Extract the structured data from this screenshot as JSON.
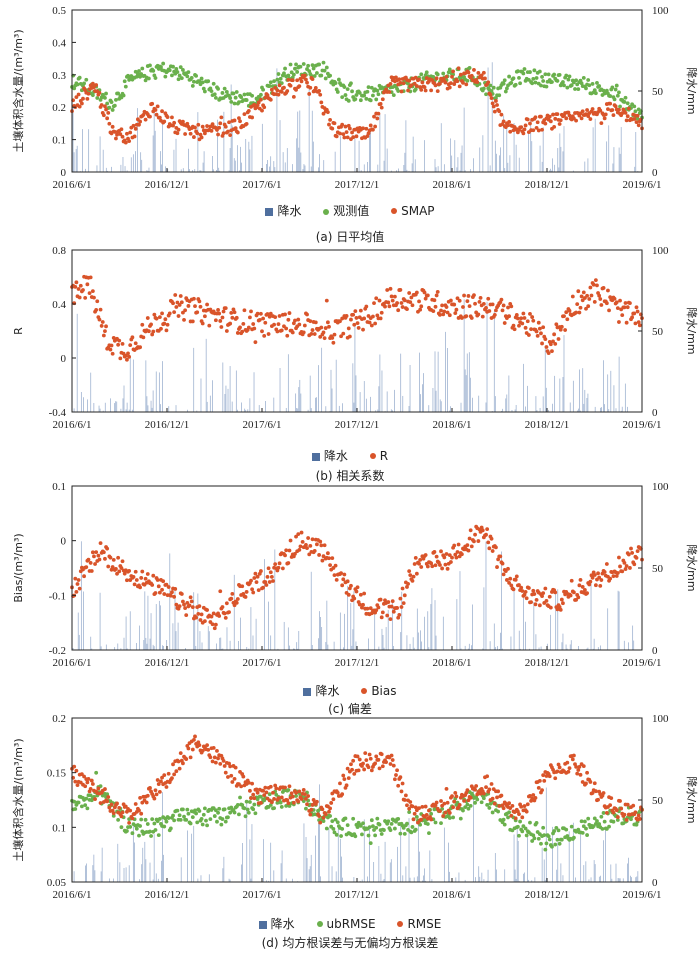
{
  "chart_data": [
    {
      "type": "scatter",
      "caption": "(a) 日平均值",
      "x": [
        "2016/6/1",
        "2016/12/1",
        "2017/6/1",
        "2017/12/1",
        "2018/6/1",
        "2018/12/1",
        "2019/6/1"
      ],
      "ylabel": "土壤体积含水量/(m³/m³)",
      "ylim": [
        0,
        0.5
      ],
      "yticks": [
        "0",
        "0.1",
        "0.2",
        "0.3",
        "0.4",
        "0.5"
      ],
      "y2label": "降水/mm",
      "y2lim": [
        0,
        100
      ],
      "y2ticks": [
        "0",
        "50",
        "100"
      ],
      "legend": [
        "降水",
        "观测值",
        "SMAP"
      ],
      "series": [
        {
          "name": "观测值",
          "color": "#6ab04c",
          "knots": [
            [
              0,
              0.28
            ],
            [
              0.03,
              0.26
            ],
            [
              0.07,
              0.21
            ],
            [
              0.1,
              0.28
            ],
            [
              0.15,
              0.32
            ],
            [
              0.2,
              0.3
            ],
            [
              0.26,
              0.24
            ],
            [
              0.32,
              0.22
            ],
            [
              0.38,
              0.31
            ],
            [
              0.44,
              0.32
            ],
            [
              0.48,
              0.24
            ],
            [
              0.53,
              0.24
            ],
            [
              0.58,
              0.26
            ],
            [
              0.63,
              0.29
            ],
            [
              0.7,
              0.3
            ],
            [
              0.74,
              0.24
            ],
            [
              0.79,
              0.3
            ],
            [
              0.85,
              0.28
            ],
            [
              0.9,
              0.27
            ],
            [
              0.95,
              0.24
            ],
            [
              1,
              0.17
            ]
          ]
        },
        {
          "name": "SMAP",
          "color": "#d9542a",
          "knots": [
            [
              0,
              0.2
            ],
            [
              0.04,
              0.27
            ],
            [
              0.07,
              0.12
            ],
            [
              0.1,
              0.11
            ],
            [
              0.14,
              0.2
            ],
            [
              0.18,
              0.14
            ],
            [
              0.23,
              0.12
            ],
            [
              0.29,
              0.14
            ],
            [
              0.34,
              0.22
            ],
            [
              0.38,
              0.27
            ],
            [
              0.42,
              0.28
            ],
            [
              0.46,
              0.13
            ],
            [
              0.52,
              0.11
            ],
            [
              0.56,
              0.27
            ],
            [
              0.64,
              0.27
            ],
            [
              0.72,
              0.3
            ],
            [
              0.76,
              0.13
            ],
            [
              0.82,
              0.15
            ],
            [
              0.9,
              0.17
            ],
            [
              0.96,
              0.2
            ],
            [
              1,
              0.14
            ]
          ]
        }
      ]
    },
    {
      "type": "scatter",
      "caption": "(b) 相关系数",
      "x": [
        "2016/6/1",
        "2016/12/1",
        "2017/6/1",
        "2017/12/1",
        "2018/6/1",
        "2018/12/1",
        "2019/6/1"
      ],
      "ylabel": "R",
      "ylim": [
        -0.4,
        0.8
      ],
      "yticks": [
        "-0.4",
        "0",
        "0.4",
        "0.8"
      ],
      "y2label": "降水/mm",
      "y2lim": [
        0,
        100
      ],
      "y2ticks": [
        "0",
        "50",
        "100"
      ],
      "legend": [
        "降水",
        "R"
      ],
      "series": [
        {
          "name": "R",
          "color": "#d9542a",
          "knots": [
            [
              0,
              0.45
            ],
            [
              0.03,
              0.55
            ],
            [
              0.06,
              0.15
            ],
            [
              0.09,
              0.05
            ],
            [
              0.13,
              0.2
            ],
            [
              0.18,
              0.38
            ],
            [
              0.22,
              0.35
            ],
            [
              0.28,
              0.28
            ],
            [
              0.34,
              0.25
            ],
            [
              0.4,
              0.25
            ],
            [
              0.46,
              0.2
            ],
            [
              0.52,
              0.3
            ],
            [
              0.56,
              0.45
            ],
            [
              0.62,
              0.42
            ],
            [
              0.68,
              0.38
            ],
            [
              0.74,
              0.38
            ],
            [
              0.8,
              0.25
            ],
            [
              0.84,
              0.1
            ],
            [
              0.88,
              0.4
            ],
            [
              0.92,
              0.5
            ],
            [
              0.96,
              0.35
            ],
            [
              1,
              0.28
            ]
          ]
        }
      ]
    },
    {
      "type": "scatter",
      "caption": "(c) 偏差",
      "x": [
        "2016/6/1",
        "2016/12/1",
        "2017/6/1",
        "2017/12/1",
        "2018/6/1",
        "2018/12/1",
        "2019/6/1"
      ],
      "ylabel": "Bias/(m³/m³)",
      "ylim": [
        -0.2,
        0.1
      ],
      "yticks": [
        "-0.2",
        "-0.1",
        "0",
        "0.1"
      ],
      "y2label": "降水/mm",
      "y2lim": [
        0,
        100
      ],
      "y2ticks": [
        "0",
        "50",
        "100"
      ],
      "legend": [
        "降水",
        "Bias"
      ],
      "series": [
        {
          "name": "Bias",
          "color": "#d9542a",
          "knots": [
            [
              0,
              -0.09
            ],
            [
              0.05,
              -0.02
            ],
            [
              0.1,
              -0.06
            ],
            [
              0.16,
              -0.09
            ],
            [
              0.2,
              -0.12
            ],
            [
              0.25,
              -0.15
            ],
            [
              0.3,
              -0.09
            ],
            [
              0.35,
              -0.06
            ],
            [
              0.4,
              0.0
            ],
            [
              0.44,
              -0.02
            ],
            [
              0.48,
              -0.08
            ],
            [
              0.52,
              -0.12
            ],
            [
              0.57,
              -0.13
            ],
            [
              0.6,
              -0.05
            ],
            [
              0.66,
              -0.03
            ],
            [
              0.72,
              0.02
            ],
            [
              0.76,
              -0.06
            ],
            [
              0.8,
              -0.1
            ],
            [
              0.86,
              -0.11
            ],
            [
              0.92,
              -0.07
            ],
            [
              1,
              -0.02
            ]
          ]
        }
      ]
    },
    {
      "type": "scatter",
      "caption": "(d) 均方根误差与无偏均方根误差",
      "x": [
        "2016/6/1",
        "2016/12/1",
        "2017/6/1",
        "2017/12/1",
        "2018/6/1",
        "2018/12/1",
        "2019/6/1"
      ],
      "ylabel": "土壤体积含水量/(m³/m³)",
      "ylim": [
        0.05,
        0.2
      ],
      "yticks": [
        "0.05",
        "0.1",
        "0.15",
        "0.2"
      ],
      "y2label": "降水/mm",
      "y2lim": [
        0,
        100
      ],
      "y2ticks": [
        "0",
        "50",
        "100"
      ],
      "legend": [
        "降水",
        "ubRMSE",
        "RMSE"
      ],
      "series": [
        {
          "name": "ubRMSE",
          "color": "#6ab04c",
          "knots": [
            [
              0,
              0.12
            ],
            [
              0.05,
              0.13
            ],
            [
              0.1,
              0.1
            ],
            [
              0.14,
              0.1
            ],
            [
              0.2,
              0.11
            ],
            [
              0.26,
              0.11
            ],
            [
              0.32,
              0.12
            ],
            [
              0.4,
              0.13
            ],
            [
              0.46,
              0.1
            ],
            [
              0.52,
              0.1
            ],
            [
              0.58,
              0.1
            ],
            [
              0.64,
              0.11
            ],
            [
              0.72,
              0.13
            ],
            [
              0.78,
              0.1
            ],
            [
              0.84,
              0.09
            ],
            [
              0.9,
              0.1
            ],
            [
              0.96,
              0.11
            ],
            [
              1,
              0.11
            ]
          ]
        },
        {
          "name": "RMSE",
          "color": "#d9542a",
          "knots": [
            [
              0,
              0.15
            ],
            [
              0.05,
              0.13
            ],
            [
              0.1,
              0.11
            ],
            [
              0.16,
              0.14
            ],
            [
              0.22,
              0.18
            ],
            [
              0.26,
              0.16
            ],
            [
              0.32,
              0.13
            ],
            [
              0.4,
              0.13
            ],
            [
              0.44,
              0.11
            ],
            [
              0.5,
              0.16
            ],
            [
              0.56,
              0.16
            ],
            [
              0.6,
              0.11
            ],
            [
              0.66,
              0.12
            ],
            [
              0.72,
              0.14
            ],
            [
              0.78,
              0.11
            ],
            [
              0.84,
              0.15
            ],
            [
              0.88,
              0.16
            ],
            [
              0.94,
              0.12
            ],
            [
              1,
              0.11
            ]
          ]
        }
      ]
    }
  ]
}
